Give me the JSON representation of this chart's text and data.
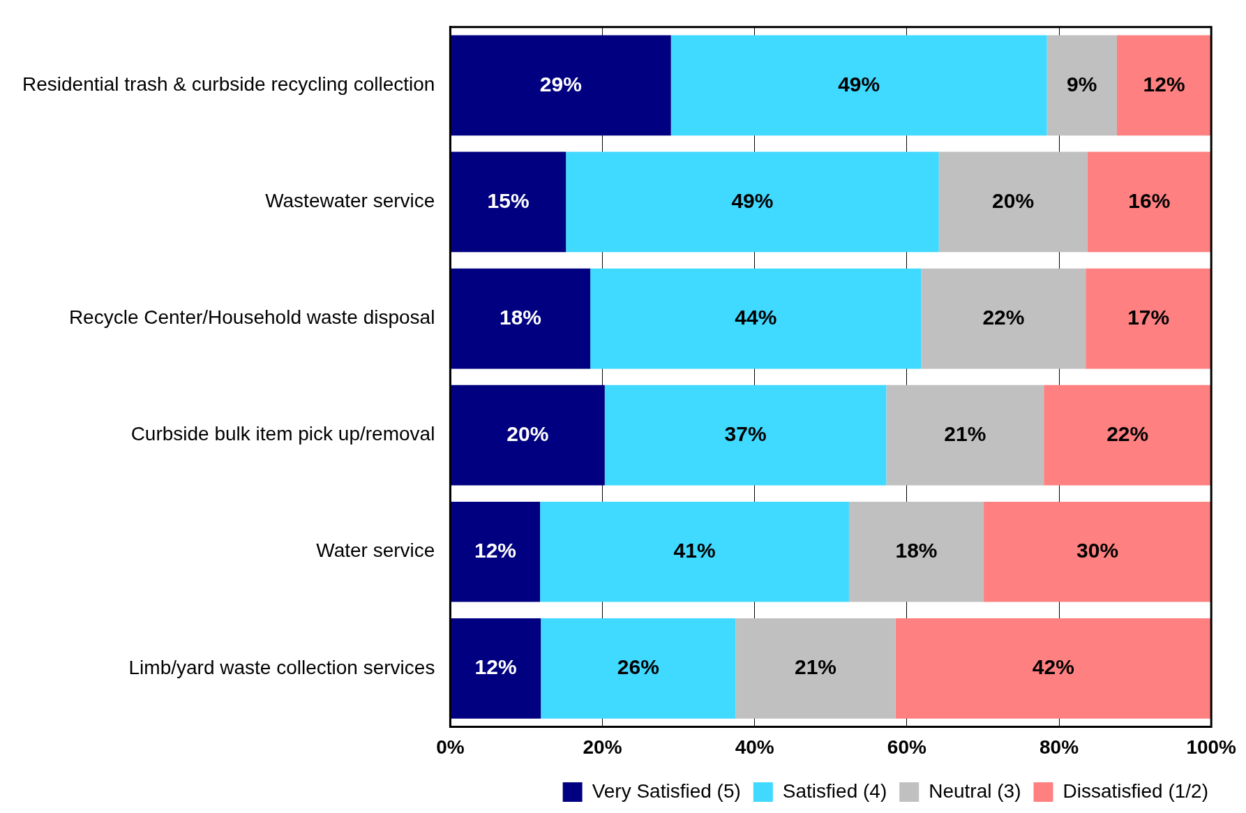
{
  "chart_data": {
    "type": "bar",
    "orientation": "horizontal",
    "stacked": true,
    "categories": [
      "Residential trash & curbside recycling collection",
      "Wastewater service",
      "Recycle Center/Household waste disposal",
      "Curbside bulk item pick up/removal",
      "Water service",
      "Limb/yard waste collection services"
    ],
    "series": [
      {
        "name": "Very Satisfied (5)",
        "color": "#000080",
        "values": [
          29,
          15.2,
          18.4,
          20.3,
          11.8,
          11.9
        ],
        "value_labels": [
          "29%",
          "15%",
          "18%",
          "20%",
          "12%",
          "12%"
        ]
      },
      {
        "name": "Satisfied (4)",
        "color": "#40d9ff",
        "values": [
          49.4,
          49,
          43.5,
          37,
          40.6,
          25.6
        ],
        "value_labels": [
          "49%",
          "49%",
          "44%",
          "37%",
          "41%",
          "26%"
        ]
      },
      {
        "name": "Neutral (3)",
        "color": "#c0c0c0",
        "values": [
          9.2,
          19.5,
          21.6,
          20.7,
          17.7,
          21
        ],
        "value_labels": [
          "9%",
          "20%",
          "22%",
          "21%",
          "18%",
          "21%"
        ]
      },
      {
        "name": "Dissatisfied (1/2)",
        "color": "#ff8080",
        "values": [
          12.4,
          16.3,
          16.5,
          22,
          29.9,
          41.5
        ],
        "value_labels": [
          "12%",
          "16%",
          "17%",
          "22%",
          "30%",
          "42%"
        ]
      }
    ],
    "xlim": [
      0,
      100
    ],
    "xticks": [
      {
        "value": 0,
        "label": "0%"
      },
      {
        "value": 20,
        "label": "20%"
      },
      {
        "value": 40,
        "label": "40%"
      },
      {
        "value": 60,
        "label": "60%"
      },
      {
        "value": 80,
        "label": "80%"
      },
      {
        "value": 100,
        "label": "100%"
      }
    ],
    "grid": "x",
    "legend": "bottom right"
  }
}
